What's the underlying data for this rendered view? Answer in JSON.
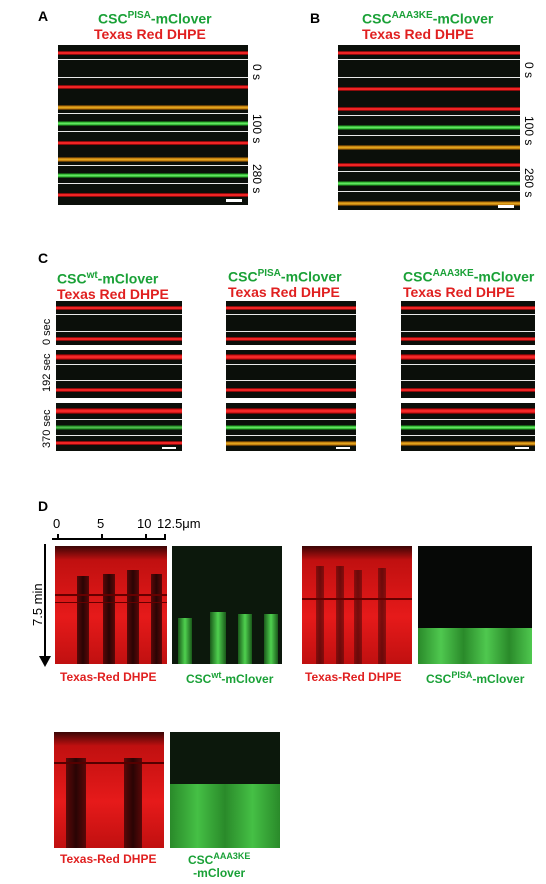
{
  "panels": {
    "A": {
      "label": "A",
      "title1_prefix": "CSC",
      "title1_sup": "PISA",
      "title1_suffix": "-mClover",
      "title2": "Texas Red DHPE",
      "times": [
        "0 s",
        "100 s",
        "280 s"
      ]
    },
    "B": {
      "label": "B",
      "title1_prefix": "CSC",
      "title1_sup": "AAA3KE",
      "title1_suffix": "-mClover",
      "title2": "Texas Red DHPE",
      "times": [
        "0 s",
        "100 s",
        "280 s"
      ]
    },
    "C": {
      "label": "C",
      "cols": [
        {
          "prefix": "CSC",
          "sup": "wt",
          "suffix": "-mClover",
          "sub": "Texas Red DHPE"
        },
        {
          "prefix": "CSC",
          "sup": "PISA",
          "suffix": "-mClover",
          "sub": "Texas Red DHPE"
        },
        {
          "prefix": "CSC",
          "sup": "AAA3KE",
          "suffix": "-mClover",
          "sub": "Texas Red DHPE"
        }
      ],
      "times": [
        "0 sec",
        "192 sec",
        "370 sec"
      ]
    },
    "D": {
      "label": "D",
      "axis_ticks": [
        "0",
        "5",
        "10",
        "12.5μm"
      ],
      "y_label": "7.5 min",
      "captions": {
        "red": "Texas-Red DHPE",
        "wt_prefix": "CSC",
        "wt_sup": "wt",
        "wt_suffix": "-mClover",
        "pisa_prefix": "CSC",
        "pisa_sup": "PISA",
        "pisa_suffix": "-mClover",
        "aaa_prefix": "CSC",
        "aaa_sup": "AAA3KE",
        "aaa_suffix": "-mClover"
      }
    }
  },
  "colors": {
    "green_text": "#1aa137",
    "red_text": "#e02020"
  }
}
